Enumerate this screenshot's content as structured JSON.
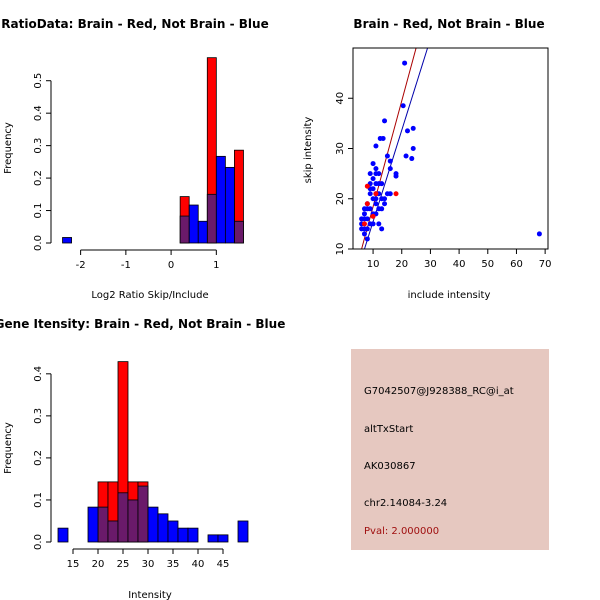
{
  "colors": {
    "red": "#ff0000",
    "blue": "#0000ff",
    "overlap": "#6a1a6a",
    "panel_bg": "#e6c8c0",
    "pval": "#a01010",
    "line_red": "#aa0000",
    "line_blue": "#0000aa"
  },
  "chart_data": [
    {
      "type": "bar",
      "title": "RatioData: Brain - Red, Not Brain - Blue",
      "xlabel": "Log2 Ratio Skip/Include",
      "ylabel": "Frequency",
      "xlim": [
        -2.5,
        1.7
      ],
      "ylim": [
        0,
        0.57
      ],
      "xticks": [
        -2,
        -1,
        0,
        1
      ],
      "xtick_labels": [
        "-2",
        "-1",
        "0",
        "1"
      ],
      "yticks": [
        0.0,
        0.1,
        0.2,
        0.3,
        0.4,
        0.5
      ],
      "ytick_labels": [
        "0.0",
        "0.1",
        "0.2",
        "0.3",
        "0.4",
        "0.5"
      ],
      "bin_width": 0.2,
      "series": [
        {
          "name": "Brain",
          "color": "red",
          "bins": [
            {
              "x0": 0.2,
              "v": 0.143
            },
            {
              "x0": 0.8,
              "v": 0.571
            },
            {
              "x0": 1.4,
              "v": 0.286
            }
          ]
        },
        {
          "name": "Not Brain",
          "color": "blue",
          "bins": [
            {
              "x0": -2.4,
              "v": 0.017
            },
            {
              "x0": 0.2,
              "v": 0.083
            },
            {
              "x0": 0.4,
              "v": 0.117
            },
            {
              "x0": 0.6,
              "v": 0.067
            },
            {
              "x0": 0.8,
              "v": 0.15
            },
            {
              "x0": 1.0,
              "v": 0.267
            },
            {
              "x0": 1.2,
              "v": 0.233
            },
            {
              "x0": 1.4,
              "v": 0.067
            }
          ]
        }
      ]
    },
    {
      "type": "scatter",
      "title": "Brain - Red, Not Brain - Blue",
      "xlabel": "include intensity",
      "ylabel": "skip intensity",
      "xlim": [
        3,
        71
      ],
      "ylim": [
        10,
        50
      ],
      "xticks": [
        10,
        20,
        30,
        40,
        50,
        60,
        70
      ],
      "xtick_labels": [
        "10",
        "20",
        "30",
        "40",
        "50",
        "60",
        "70"
      ],
      "yticks": [
        10,
        20,
        30,
        40
      ],
      "ytick_labels": [
        "10",
        "20",
        "30",
        "40"
      ],
      "series": [
        {
          "name": "Not Brain",
          "color": "blue",
          "points": [
            [
              21,
              47
            ],
            [
              20.5,
              38.5
            ],
            [
              68,
              13
            ],
            [
              24,
              34
            ],
            [
              22,
              33.5
            ],
            [
              24,
              30
            ],
            [
              23.5,
              28
            ],
            [
              21.5,
              28.5
            ],
            [
              18,
              25
            ],
            [
              18,
              24.5
            ],
            [
              16,
              27.5
            ],
            [
              16,
              26
            ],
            [
              15,
              28.5
            ],
            [
              13.5,
              32
            ],
            [
              14,
              35.5
            ],
            [
              12.5,
              32
            ],
            [
              11,
              30.5
            ],
            [
              10,
              27
            ],
            [
              11,
              26
            ],
            [
              12,
              25
            ],
            [
              11,
              25
            ],
            [
              9,
              25
            ],
            [
              10,
              24
            ],
            [
              11,
              23
            ],
            [
              12,
              23
            ],
            [
              13,
              23
            ],
            [
              10,
              22
            ],
            [
              11,
              21
            ],
            [
              12,
              21
            ],
            [
              13,
              20
            ],
            [
              14,
              20
            ],
            [
              15,
              21
            ],
            [
              16,
              21
            ],
            [
              9,
              21
            ],
            [
              10,
              20
            ],
            [
              11,
              19
            ],
            [
              12,
              18
            ],
            [
              13,
              18
            ],
            [
              14,
              19
            ],
            [
              8,
              19
            ],
            [
              8,
              18
            ],
            [
              9,
              18
            ],
            [
              10,
              17
            ],
            [
              11,
              17
            ],
            [
              6,
              16
            ],
            [
              7,
              16
            ],
            [
              8,
              16
            ],
            [
              9,
              15
            ],
            [
              10,
              15
            ],
            [
              6,
              15
            ],
            [
              7,
              14
            ],
            [
              8,
              14
            ],
            [
              12,
              15
            ],
            [
              13,
              14
            ],
            [
              6,
              14
            ],
            [
              7,
              13
            ],
            [
              8,
              12
            ],
            [
              9,
              23
            ],
            [
              9,
              22
            ],
            [
              11,
              20
            ],
            [
              7,
              18
            ],
            [
              7,
              17
            ]
          ]
        },
        {
          "name": "Brain",
          "color": "red",
          "points": [
            [
              8,
              22.5
            ],
            [
              18,
              21
            ],
            [
              8,
              19
            ],
            [
              10,
              16.5
            ],
            [
              11,
              21
            ],
            [
              7,
              15
            ]
          ]
        }
      ],
      "lines": [
        {
          "color": "line_red",
          "from": [
            6,
            10
          ],
          "to": [
            25,
            50
          ]
        },
        {
          "color": "line_blue",
          "from": [
            7,
            10
          ],
          "to": [
            29,
            50
          ]
        }
      ]
    },
    {
      "type": "bar",
      "title": "Gene Itensity: Brain - Red, Not Brain - Blue",
      "xlabel": "Intensity",
      "ylabel": "Frequency",
      "xlim": [
        12,
        50
      ],
      "ylim": [
        0,
        0.44
      ],
      "xticks": [
        15,
        20,
        25,
        30,
        35,
        40,
        45
      ],
      "xtick_labels": [
        "15",
        "20",
        "25",
        "30",
        "35",
        "40",
        "45"
      ],
      "yticks": [
        0.0,
        0.1,
        0.2,
        0.3,
        0.4
      ],
      "ytick_labels": [
        "0.0",
        "0.1",
        "0.2",
        "0.3",
        "0.4"
      ],
      "bin_width": 2,
      "series": [
        {
          "name": "Brain",
          "color": "red",
          "bins": [
            {
              "x0": 20,
              "v": 0.143
            },
            {
              "x0": 22,
              "v": 0.143
            },
            {
              "x0": 24,
              "v": 0.429
            },
            {
              "x0": 26,
              "v": 0.143
            },
            {
              "x0": 28,
              "v": 0.143
            }
          ]
        },
        {
          "name": "Not Brain",
          "color": "blue",
          "bins": [
            {
              "x0": 12,
              "v": 0.033
            },
            {
              "x0": 18,
              "v": 0.083
            },
            {
              "x0": 20,
              "v": 0.083
            },
            {
              "x0": 22,
              "v": 0.05
            },
            {
              "x0": 24,
              "v": 0.117
            },
            {
              "x0": 26,
              "v": 0.1
            },
            {
              "x0": 28,
              "v": 0.133
            },
            {
              "x0": 30,
              "v": 0.083
            },
            {
              "x0": 32,
              "v": 0.067
            },
            {
              "x0": 34,
              "v": 0.05
            },
            {
              "x0": 36,
              "v": 0.033
            },
            {
              "x0": 38,
              "v": 0.033
            },
            {
              "x0": 42,
              "v": 0.017
            },
            {
              "x0": 44,
              "v": 0.017
            },
            {
              "x0": 48,
              "v": 0.05
            }
          ]
        }
      ]
    }
  ],
  "info_panel": {
    "probe": "G7042507@J928388_RC@i_at",
    "event": "altTxStart",
    "accession": "AK030867",
    "location": "chr2.14084-3.24",
    "pval": "Pval: 2.000000"
  }
}
